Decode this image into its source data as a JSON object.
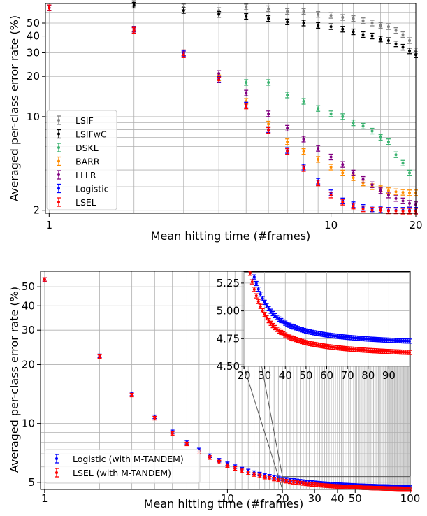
{
  "chart_data": [
    {
      "type": "scatter",
      "title": "",
      "xlabel": "Mean hitting time (#frames)",
      "ylabel": "Averaged per-class error rate (%)",
      "xscale": "log",
      "yscale": "log",
      "xlim": [
        0.97,
        20
      ],
      "ylim": [
        1.9,
        70
      ],
      "xticks": [
        "1",
        "10",
        "20"
      ],
      "yticks": [
        "2",
        "10",
        "20",
        "30",
        "40",
        "50"
      ],
      "grid": true,
      "legend_position": "lower-left",
      "series": [
        {
          "name": "LSIF",
          "color": "#808080",
          "x": [
            1.0,
            2.0,
            3.0,
            4.0,
            5.0,
            6.0,
            7.0,
            8.0,
            9.0,
            10.0,
            11.0,
            12.0,
            13.0,
            14.0,
            15.0,
            16.0,
            17.0,
            18.0,
            19.0,
            20.0
          ],
          "y": [
            65,
            70,
            66,
            62,
            66,
            64,
            61,
            61,
            58,
            57,
            55,
            54,
            52,
            50,
            48,
            47,
            44,
            41,
            37,
            31
          ]
        },
        {
          "name": "LSIFwC",
          "color": "#000000",
          "x": [
            1.0,
            2.0,
            3.0,
            4.0,
            5.0,
            6.0,
            7.0,
            8.0,
            9.0,
            10.0,
            11.0,
            12.0,
            13.0,
            14.0,
            15.0,
            16.0,
            17.0,
            18.0,
            19.0,
            20.0
          ],
          "y": [
            65,
            68,
            62,
            58,
            56,
            54,
            51,
            50,
            48,
            47,
            45,
            43,
            41,
            40,
            38,
            37,
            35,
            33,
            31,
            29
          ]
        },
        {
          "name": "DSKL",
          "color": "#3cb371",
          "x": [
            5.0,
            6.0,
            7.0,
            8.0,
            9.0,
            10.0,
            11.0,
            12.0,
            13.0,
            14.0,
            15.0,
            16.0,
            17.0,
            18.0,
            19.0
          ],
          "y": [
            18,
            18,
            14.5,
            13,
            11.5,
            10.5,
            10,
            9,
            8.5,
            7.8,
            7,
            6.5,
            5.2,
            4.5,
            3.8
          ]
        },
        {
          "name": "BARR",
          "color": "#ff8c00",
          "x": [
            1.0,
            2.0,
            3.0,
            4.0,
            5.0,
            6.0,
            7.0,
            8.0,
            9.0,
            10.0,
            11.0,
            12.0,
            13.0,
            14.0,
            15.0,
            16.0,
            17.0,
            18.0,
            19.0,
            20.0
          ],
          "y": [
            65,
            45,
            30,
            19.5,
            13,
            8.8,
            6.5,
            5.5,
            4.8,
            4.2,
            3.8,
            3.5,
            3.2,
            3.0,
            2.9,
            2.8,
            2.75,
            2.72,
            2.7,
            2.7
          ]
        },
        {
          "name": "LLLR",
          "color": "#800080",
          "x": [
            1.0,
            2.0,
            3.0,
            4.0,
            5.0,
            6.0,
            7.0,
            8.0,
            9.0,
            10.0,
            11.0,
            12.0,
            13.0,
            14.0,
            15.0,
            16.0,
            17.0,
            18.0,
            19.0,
            20.0
          ],
          "y": [
            65,
            45,
            30,
            21,
            15,
            10.5,
            8.2,
            6.8,
            5.8,
            5.0,
            4.4,
            3.8,
            3.4,
            3.1,
            2.8,
            2.6,
            2.45,
            2.35,
            2.25,
            2.2
          ]
        },
        {
          "name": "Logistic",
          "color": "#0000ff",
          "x": [
            1.0,
            2.0,
            3.0,
            4.0,
            5.0,
            6.0,
            7.0,
            8.0,
            9.0,
            10.0,
            11.0,
            12.0,
            13.0,
            14.0,
            15.0,
            16.0,
            17.0,
            18.0,
            19.0,
            20.0
          ],
          "y": [
            65,
            44,
            29.5,
            19,
            12.2,
            8.0,
            5.6,
            4.2,
            3.3,
            2.7,
            2.35,
            2.2,
            2.1,
            2.05,
            2.02,
            2.0,
            2.0,
            2.0,
            2.0,
            2.0
          ]
        },
        {
          "name": "LSEL",
          "color": "#ff0000",
          "x": [
            1.0,
            2.0,
            3.0,
            4.0,
            5.0,
            6.0,
            7.0,
            8.0,
            9.0,
            10.0,
            11.0,
            12.0,
            13.0,
            14.0,
            15.0,
            16.0,
            17.0,
            18.0,
            19.0,
            20.0
          ],
          "y": [
            65,
            44,
            29,
            18.8,
            12.0,
            7.9,
            5.5,
            4.1,
            3.2,
            2.6,
            2.3,
            2.15,
            2.05,
            2.0,
            2.0,
            1.98,
            1.98,
            1.97,
            1.97,
            1.97
          ]
        }
      ]
    },
    {
      "type": "scatter",
      "title": "",
      "xlabel": "Mean hitting time (#frames)",
      "ylabel": "Averaged per-class error rate (%)",
      "xscale": "log",
      "yscale": "log",
      "xlim": [
        0.95,
        100
      ],
      "ylim": [
        4.6,
        60
      ],
      "xticks": [
        "1",
        "10",
        "20",
        "30",
        "40",
        "50",
        "100"
      ],
      "yticks": [
        "5",
        "10",
        "20",
        "30",
        "40",
        "50"
      ],
      "grid": true,
      "legend_position": "lower-left",
      "series": [
        {
          "name": "Logistic (with M-TANDEM)",
          "color": "#0000ff",
          "x_start": 1,
          "x_end": 100,
          "x_step": 1,
          "y0": 54.5,
          "y_floor": 4.68,
          "decay_power": 1.51
        },
        {
          "name": "LSEL (with M-TANDEM)",
          "color": "#ff0000",
          "x_start": 1,
          "x_end": 100,
          "x_step": 1,
          "y0": 54.5,
          "y_floor": 4.58,
          "decay_power": 1.52
        }
      ],
      "inset": {
        "xlim": [
          20,
          100
        ],
        "ylim": [
          4.5,
          5.35
        ],
        "xticks": [
          "20",
          "30",
          "40",
          "50",
          "60",
          "70",
          "80",
          "90"
        ],
        "yticks": [
          "4.50",
          "4.75",
          "5.00",
          "5.25"
        ]
      }
    }
  ]
}
